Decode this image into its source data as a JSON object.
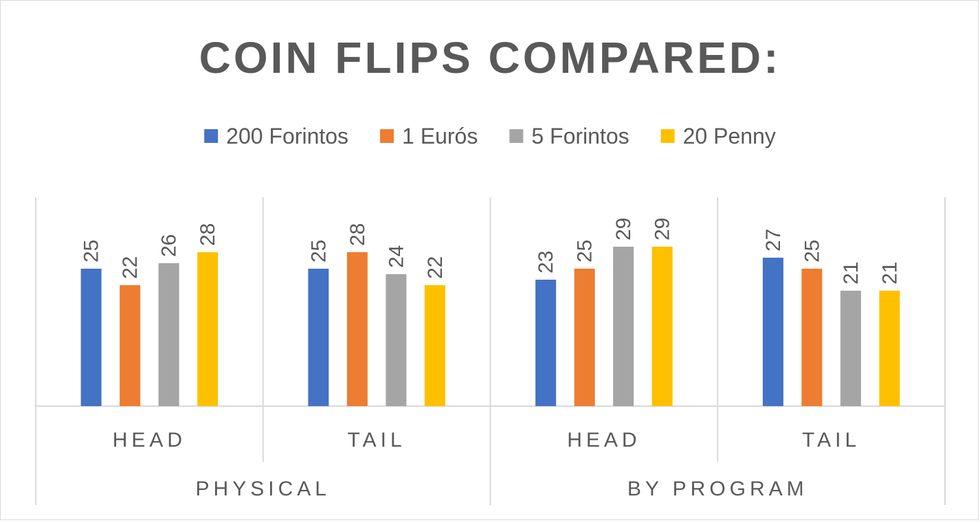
{
  "chart_data": {
    "type": "bar",
    "title": "COIN FLIPS COMPARED:",
    "xlabel": "",
    "ylabel": "",
    "ylim": [
      0,
      38
    ],
    "grid": false,
    "legend_position": "top",
    "groups": [
      {
        "label": "PHYSICAL",
        "categories": [
          "HEAD",
          "TAIL"
        ]
      },
      {
        "label": "BY PROGRAM",
        "categories": [
          "HEAD",
          "TAIL"
        ]
      }
    ],
    "categories": [
      "HEAD",
      "TAIL",
      "HEAD",
      "TAIL"
    ],
    "series": [
      {
        "name": "200 Forintos",
        "color": "#4472c4",
        "values": [
          25,
          25,
          23,
          27
        ]
      },
      {
        "name": "1 Eurós",
        "color": "#ed7d31",
        "values": [
          22,
          28,
          25,
          25
        ]
      },
      {
        "name": "5 Forintos",
        "color": "#a5a5a5",
        "values": [
          26,
          24,
          29,
          21
        ]
      },
      {
        "name": "20 Penny",
        "color": "#ffc000",
        "values": [
          28,
          22,
          29,
          21
        ]
      }
    ]
  }
}
